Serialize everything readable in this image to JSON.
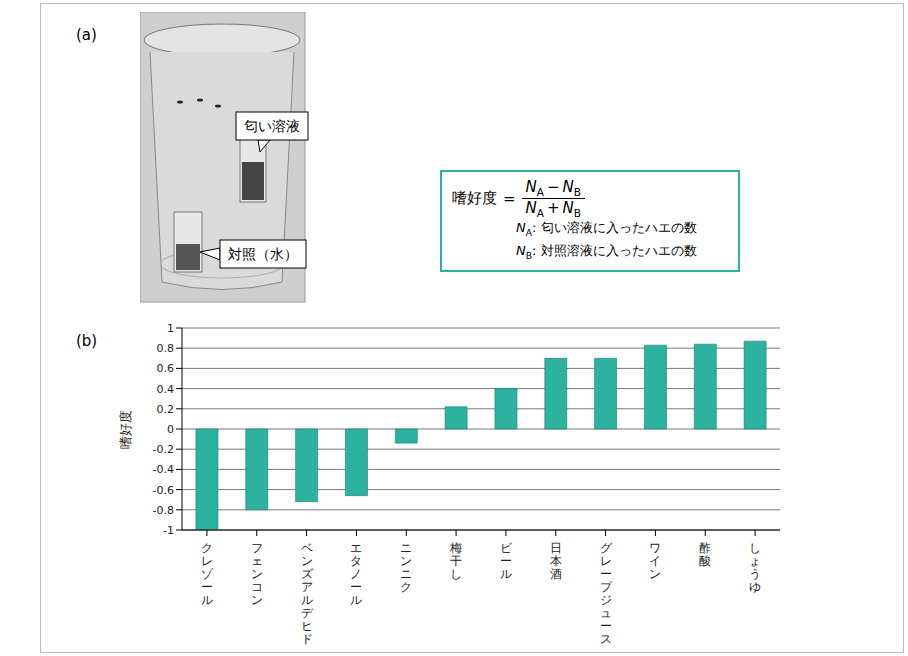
{
  "panel_a": {
    "label": "(a)",
    "callouts": [
      "匂い溶液",
      "対照（水）"
    ],
    "formula": {
      "lhs": "嗜好度",
      "equals": "=",
      "numerator": {
        "left": {
          "symbol": "N",
          "sub": "A"
        },
        "operator": "−",
        "right": {
          "symbol": "N",
          "sub": "B"
        }
      },
      "denominator": {
        "left": {
          "symbol": "N",
          "sub": "A"
        },
        "operator": "+",
        "right": {
          "symbol": "N",
          "sub": "B"
        }
      },
      "definitions": [
        {
          "symbol": "N",
          "sub": "A",
          "separator": ":",
          "text": "匂い溶液に入ったハエの数"
        },
        {
          "symbol": "N",
          "sub": "B",
          "separator": ":",
          "text": "対照溶液に入ったハエの数"
        }
      ]
    }
  },
  "panel_b": {
    "label": "(b)"
  },
  "chart_data": {
    "type": "bar",
    "y_label": "嗜好度",
    "categories": [
      "クレゾール",
      "フェンコン",
      "ベンズアルデヒド",
      "エタノール",
      "ニンニク",
      "梅干し",
      "ビール",
      "日本酒",
      "グレープジュース",
      "ワイン",
      "酢酸",
      "しょうゆ"
    ],
    "values": [
      -1.0,
      -0.8,
      -0.72,
      -0.66,
      -0.14,
      0.22,
      0.4,
      0.7,
      0.7,
      0.83,
      0.84,
      0.87
    ],
    "color": "#2bb3a0",
    "ylim": [
      -1,
      1
    ],
    "yticks": [
      -1,
      -0.8,
      -0.6,
      -0.4,
      -0.2,
      0,
      0.2,
      0.4,
      0.6,
      0.8,
      1
    ],
    "grid": true
  }
}
